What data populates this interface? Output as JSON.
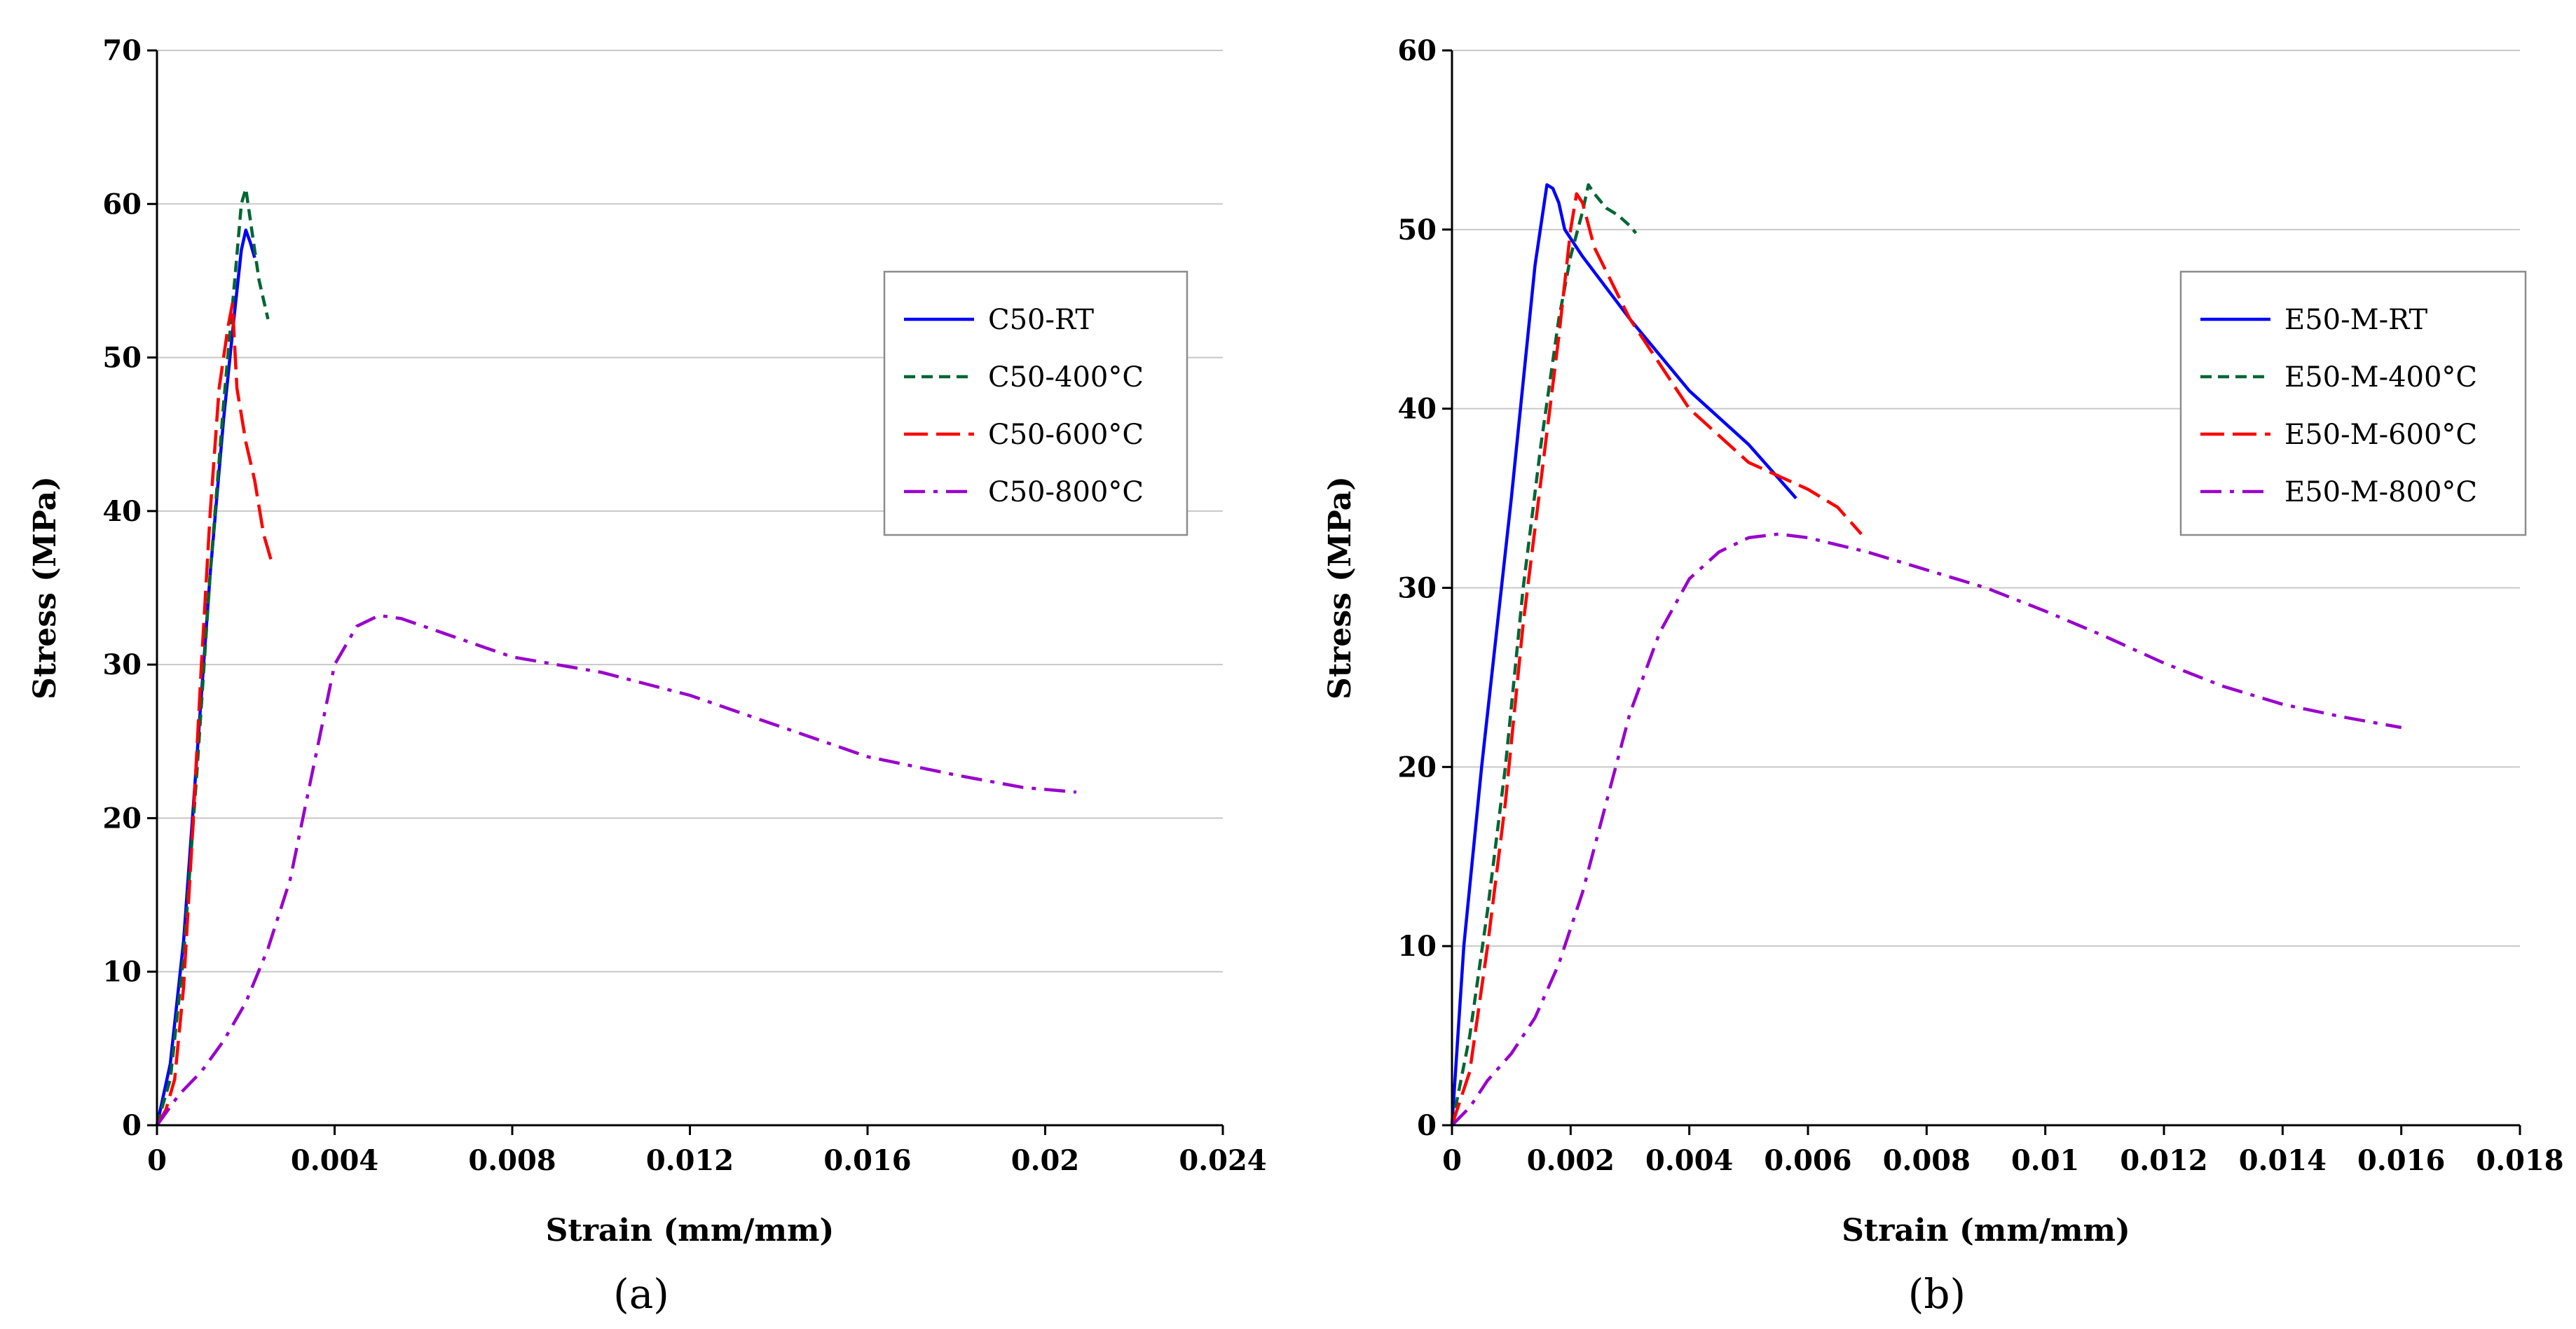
{
  "colors": {
    "rt": "#0000ff",
    "t400": "#006633",
    "t600": "#ff0000",
    "t800": "#9900cc",
    "grid": "#c8c8c8",
    "axis": "#000000"
  },
  "chart_data": [
    {
      "type": "line",
      "panel_label": "(a)",
      "xlabel": "Strain (mm/mm)",
      "ylabel": "Stress (MPa)",
      "xlim": [
        0,
        0.024
      ],
      "ylim": [
        0,
        70
      ],
      "xticks": [
        0,
        0.004,
        0.008,
        0.012,
        0.016,
        0.02,
        0.024
      ],
      "xtick_labels": [
        "0",
        "0.004",
        "0.008",
        "0.012",
        "0.016",
        "0.02",
        "0.024"
      ],
      "yticks": [
        0,
        10,
        20,
        30,
        40,
        50,
        60,
        70
      ],
      "ytick_labels": [
        "0",
        "10",
        "20",
        "30",
        "40",
        "50",
        "60",
        "70"
      ],
      "grid": "horizontal",
      "legend_position": "right",
      "series": [
        {
          "name": "C50-RT",
          "style": "solid",
          "color_key": "rt",
          "x": [
            0,
            0.0003,
            0.0006,
            0.0009,
            0.0012,
            0.0015,
            0.00175,
            0.0019,
            0.002,
            0.0021,
            0.0022
          ],
          "y": [
            0,
            4,
            12,
            24,
            36,
            46,
            53,
            57,
            58.3,
            57.5,
            56.5
          ]
        },
        {
          "name": "C50-400°C",
          "style": "dash",
          "color_key": "t400",
          "x": [
            0,
            0.0003,
            0.0006,
            0.0009,
            0.0012,
            0.0015,
            0.00175,
            0.0019,
            0.002,
            0.0021,
            0.0022,
            0.0023,
            0.0025
          ],
          "y": [
            0,
            3,
            11,
            23,
            36,
            47,
            55,
            60,
            61,
            59,
            57,
            55,
            52.5
          ]
        },
        {
          "name": "C50-600°C",
          "style": "longdash",
          "color_key": "t600",
          "x": [
            0,
            0.0002,
            0.0004,
            0.0006,
            0.0008,
            0.001,
            0.0012,
            0.0014,
            0.0016,
            0.0017,
            0.0018,
            0.002,
            0.0022,
            0.0024,
            0.0026
          ],
          "y": [
            0,
            1,
            3,
            9,
            19,
            30,
            40,
            48,
            52,
            53.5,
            48,
            44.5,
            42,
            38.5,
            36.5
          ]
        },
        {
          "name": "C50-800°C",
          "style": "dashdot",
          "color_key": "t800",
          "x": [
            0,
            0.0005,
            0.001,
            0.0015,
            0.002,
            0.0025,
            0.003,
            0.0035,
            0.004,
            0.0045,
            0.005,
            0.0055,
            0.006,
            0.007,
            0.008,
            0.01,
            0.012,
            0.014,
            0.016,
            0.018,
            0.0195,
            0.0207
          ],
          "y": [
            0,
            2,
            3.5,
            5.5,
            8,
            11.5,
            16,
            23,
            30,
            32.5,
            33.2,
            33,
            32.5,
            31.5,
            30.5,
            29.5,
            28,
            26,
            24,
            22.8,
            22,
            21.7
          ]
        }
      ]
    },
    {
      "type": "line",
      "panel_label": "(b)",
      "xlabel": "Strain (mm/mm)",
      "ylabel": "Stress (MPa)",
      "xlim": [
        0,
        0.018
      ],
      "ylim": [
        0,
        60
      ],
      "xticks": [
        0,
        0.002,
        0.004,
        0.006,
        0.008,
        0.01,
        0.012,
        0.014,
        0.016,
        0.018
      ],
      "xtick_labels": [
        "0",
        "0.002",
        "0.004",
        "0.006",
        "0.008",
        "0.01",
        "0.012",
        "0.014",
        "0.016",
        "0.018"
      ],
      "yticks": [
        0,
        10,
        20,
        30,
        40,
        50,
        60
      ],
      "ytick_labels": [
        "0",
        "10",
        "20",
        "30",
        "40",
        "50",
        "60"
      ],
      "grid": "horizontal",
      "legend_position": "right",
      "series": [
        {
          "name": "E50-M-RT",
          "style": "solid",
          "color_key": "rt",
          "x": [
            0,
            0.0002,
            0.0005,
            0.001,
            0.0014,
            0.0016,
            0.0017,
            0.0018,
            0.0019,
            0.0022,
            0.003,
            0.004,
            0.005,
            0.0058
          ],
          "y": [
            0,
            10,
            20,
            35,
            48,
            52.5,
            52.3,
            51.5,
            50,
            48.5,
            45,
            41,
            38,
            35
          ]
        },
        {
          "name": "E50-M-400°C",
          "style": "dash",
          "color_key": "t400",
          "x": [
            0,
            0.0003,
            0.0006,
            0.0009,
            0.0012,
            0.0015,
            0.0018,
            0.002,
            0.0022,
            0.0023,
            0.0024,
            0.0026,
            0.0028,
            0.003,
            0.0031
          ],
          "y": [
            0,
            5,
            12,
            20,
            30,
            38,
            45,
            48.5,
            51,
            52.5,
            52,
            51.2,
            50.8,
            50.2,
            49.8
          ]
        },
        {
          "name": "E50-M-600°C",
          "style": "longdash",
          "color_key": "t600",
          "x": [
            0,
            0.0003,
            0.0006,
            0.0009,
            0.0012,
            0.0015,
            0.0018,
            0.002,
            0.0021,
            0.0022,
            0.0024,
            0.003,
            0.004,
            0.005,
            0.006,
            0.0065,
            0.0069
          ],
          "y": [
            0,
            3,
            10,
            18,
            28,
            36,
            44,
            50,
            52,
            51.5,
            49,
            45,
            40,
            37,
            35.5,
            34.5,
            33
          ]
        },
        {
          "name": "E50-M-800°C",
          "style": "dashdot",
          "color_key": "t800",
          "x": [
            0,
            0.0003,
            0.0006,
            0.001,
            0.0014,
            0.0018,
            0.0022,
            0.0026,
            0.003,
            0.0035,
            0.004,
            0.0045,
            0.005,
            0.0055,
            0.006,
            0.007,
            0.008,
            0.009,
            0.01,
            0.011,
            0.012,
            0.013,
            0.014,
            0.015,
            0.016
          ],
          "y": [
            0,
            1,
            2.5,
            4,
            6,
            9,
            13,
            18,
            23,
            27.5,
            30.5,
            32,
            32.8,
            33,
            32.8,
            32,
            31,
            30,
            28.7,
            27.3,
            25.8,
            24.5,
            23.5,
            22.8,
            22.2
          ]
        }
      ]
    }
  ]
}
